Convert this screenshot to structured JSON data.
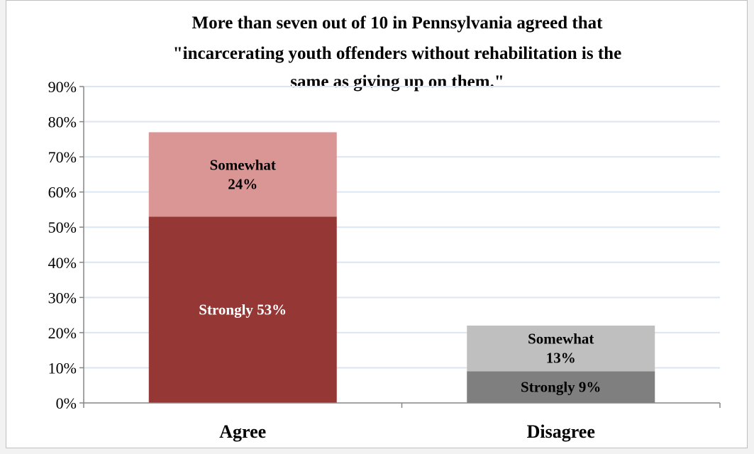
{
  "chart_data": {
    "type": "bar",
    "stacked": true,
    "title_lines": [
      "More than seven out of 10 in Pennsylvania agreed that",
      "\"incarcerating youth offenders without rehabilitation is the",
      "same as giving up on them.\""
    ],
    "categories": [
      "Agree",
      "Disagree"
    ],
    "ylim": [
      0,
      90
    ],
    "y_ticks": [
      "0%",
      "10%",
      "20%",
      "30%",
      "40%",
      "50%",
      "60%",
      "70%",
      "80%",
      "90%"
    ],
    "grid": true,
    "legend": "none",
    "bars": [
      {
        "category": "Agree",
        "segments": [
          {
            "value": 53,
            "label_lines": [
              "Strongly 53%"
            ],
            "color": "#953735",
            "label_color": "#ffffff"
          },
          {
            "value": 24,
            "label_lines": [
              "Somewhat",
              "24%"
            ],
            "color": "#d99694",
            "label_color": "#000000"
          }
        ]
      },
      {
        "category": "Disagree",
        "segments": [
          {
            "value": 9,
            "label_lines": [
              "Strongly 9%"
            ],
            "color": "#7f7f7f",
            "label_color": "#000000"
          },
          {
            "value": 13,
            "label_lines": [
              "Somewhat",
              "13%"
            ],
            "color": "#bfbfbf",
            "label_color": "#000000"
          }
        ]
      }
    ],
    "colors": {
      "gridline": "#dce6f2",
      "axis": "#868686"
    }
  }
}
